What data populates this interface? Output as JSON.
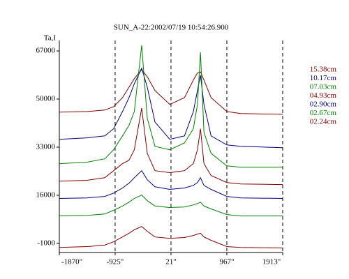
{
  "chart_data": {
    "type": "line",
    "title": "SUN_A-22:2002/07/19 10:54:26.900",
    "y_label": "Ta,I",
    "x": [
      -1870,
      -1400,
      -1100,
      -950,
      -800,
      -690,
      -600,
      -475,
      -380,
      -250,
      0,
      250,
      400,
      470,
      520,
      580,
      700,
      967,
      1200,
      1913
    ],
    "series": [
      {
        "name": "15.38cm",
        "color": "#800000",
        "values": [
          45400,
          45600,
          46100,
          47300,
          50500,
          54200,
          57200,
          60400,
          57900,
          53000,
          48100,
          50500,
          56700,
          59200,
          59600,
          56700,
          50500,
          45600,
          44900,
          44600
        ]
      },
      {
        "name": "10.17cm",
        "color": "#000080",
        "values": [
          35800,
          36300,
          37000,
          39500,
          45600,
          50500,
          55400,
          60900,
          54200,
          41900,
          35800,
          37000,
          45600,
          53000,
          58400,
          48100,
          37000,
          33800,
          33300,
          32800
        ]
      },
      {
        "name": "07.03cm",
        "color": "#008000",
        "values": [
          27200,
          27700,
          28900,
          32100,
          37000,
          40700,
          45600,
          69000,
          43200,
          33300,
          32100,
          34500,
          39500,
          48100,
          66500,
          38200,
          30800,
          26400,
          25900,
          25900
        ]
      },
      {
        "name": "04.93cm",
        "color": "#800000",
        "values": [
          21000,
          21300,
          22200,
          24700,
          27200,
          28400,
          32100,
          46800,
          30800,
          24700,
          24000,
          24700,
          27200,
          32100,
          39500,
          27200,
          23000,
          20500,
          20000,
          19800
        ]
      },
      {
        "name": "02.90cm",
        "color": "#000080",
        "values": [
          14900,
          15100,
          15600,
          16800,
          18600,
          20300,
          22200,
          24700,
          21500,
          19000,
          18100,
          18600,
          19500,
          20500,
          22200,
          19500,
          18100,
          15600,
          15100,
          14900
        ]
      },
      {
        "name": "02.67cm",
        "color": "#008000",
        "values": [
          8700,
          8900,
          9400,
          10700,
          12200,
          13600,
          14900,
          16100,
          14100,
          12200,
          11700,
          11900,
          12600,
          13100,
          13600,
          12200,
          11200,
          9200,
          8700,
          8700
        ]
      },
      {
        "name": "02.24cm",
        "color": "#800000",
        "values": [
          -2400,
          -2100,
          -1600,
          -400,
          1300,
          2600,
          3800,
          5000,
          3300,
          1300,
          800,
          1100,
          1800,
          2300,
          2600,
          1300,
          100,
          -2100,
          -2400,
          -2600
        ]
      }
    ],
    "xlim": [
      -1870,
      1913
    ],
    "xticks": [
      {
        "value": -1870,
        "label": "-1870\""
      },
      {
        "value": -925,
        "label": "-925\""
      },
      {
        "value": 21,
        "label": "21\""
      },
      {
        "value": 967,
        "label": "967\""
      },
      {
        "value": 1913,
        "label": "1913\""
      }
    ],
    "ylim": [
      -4200,
      70700
    ],
    "yticks": [
      67000,
      50000,
      33000,
      16000,
      -1000
    ],
    "grid": true,
    "legend": "right"
  }
}
